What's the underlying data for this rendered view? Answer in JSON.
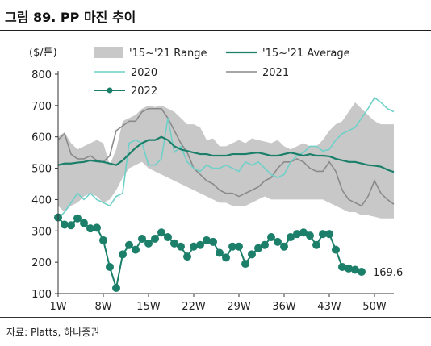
{
  "figure": {
    "title": "그림 89.  PP 마진 추이",
    "source": "자료: Platts, 하나증권"
  },
  "colors": {
    "range": "#c8c8c8",
    "avg": "#1b7f6a",
    "y2020": "#6fd0c8",
    "y2021": "#8a8a8a",
    "y2022": "#1b7f6a"
  },
  "chart_data": {
    "type": "line",
    "ylabel": "($/톤)",
    "ylim": [
      100,
      800
    ],
    "yticks": [
      100,
      200,
      300,
      400,
      500,
      600,
      700,
      800
    ],
    "xlim": [
      1,
      53
    ],
    "xticks": [
      1,
      8,
      15,
      22,
      29,
      36,
      43,
      50
    ],
    "xtick_labels": [
      "1W",
      "8W",
      "15W",
      "22W",
      "29W",
      "36W",
      "43W",
      "50W"
    ],
    "legend": {
      "range": "'15~'21 Range",
      "avg": "'15~'21 Average",
      "y2020": "2020",
      "y2021": "2021",
      "y2022": "2022"
    },
    "weeks": [
      1,
      2,
      3,
      4,
      5,
      6,
      7,
      8,
      9,
      10,
      11,
      12,
      13,
      14,
      15,
      16,
      17,
      18,
      19,
      20,
      21,
      22,
      23,
      24,
      25,
      26,
      27,
      28,
      29,
      30,
      31,
      32,
      33,
      34,
      35,
      36,
      37,
      38,
      39,
      40,
      41,
      42,
      43,
      44,
      45,
      46,
      47,
      48,
      49,
      50,
      51,
      52,
      53
    ],
    "range_high": [
      600,
      615,
      580,
      560,
      570,
      580,
      590,
      580,
      510,
      560,
      650,
      660,
      670,
      690,
      700,
      695,
      700,
      690,
      680,
      660,
      640,
      640,
      630,
      590,
      595,
      570,
      570,
      580,
      590,
      580,
      595,
      590,
      585,
      580,
      590,
      570,
      560,
      570,
      580,
      570,
      570,
      590,
      620,
      640,
      650,
      680,
      710,
      690,
      670,
      650,
      640,
      640,
      640
    ],
    "range_low": [
      380,
      360,
      380,
      390,
      410,
      420,
      410,
      390,
      400,
      430,
      470,
      500,
      510,
      520,
      500,
      490,
      480,
      470,
      460,
      450,
      440,
      430,
      420,
      410,
      400,
      390,
      390,
      380,
      380,
      380,
      390,
      400,
      410,
      400,
      400,
      400,
      400,
      400,
      400,
      400,
      400,
      400,
      390,
      380,
      370,
      360,
      360,
      350,
      350,
      345,
      340,
      340,
      340
    ],
    "avg": [
      510,
      515,
      515,
      518,
      520,
      525,
      522,
      520,
      515,
      510,
      525,
      545,
      565,
      580,
      590,
      590,
      600,
      590,
      570,
      560,
      555,
      550,
      545,
      545,
      540,
      540,
      540,
      545,
      545,
      545,
      548,
      550,
      545,
      540,
      540,
      545,
      550,
      545,
      540,
      545,
      540,
      540,
      538,
      530,
      525,
      520,
      520,
      515,
      510,
      508,
      505,
      495,
      488
    ],
    "y2020": [
      340,
      360,
      390,
      420,
      400,
      420,
      400,
      390,
      380,
      410,
      420,
      580,
      590,
      580,
      510,
      510,
      530,
      660,
      550,
      570,
      520,
      500,
      490,
      510,
      500,
      500,
      510,
      500,
      490,
      520,
      510,
      520,
      500,
      480,
      470,
      480,
      520,
      540,
      550,
      570,
      570,
      555,
      560,
      590,
      610,
      620,
      630,
      660,
      690,
      725,
      710,
      690,
      680
    ],
    "y2021": [
      590,
      610,
      545,
      530,
      530,
      540,
      525,
      520,
      540,
      620,
      635,
      650,
      650,
      680,
      690,
      690,
      690,
      660,
      620,
      580,
      550,
      500,
      480,
      460,
      450,
      430,
      420,
      420,
      410,
      420,
      430,
      440,
      460,
      470,
      500,
      520,
      520,
      530,
      520,
      500,
      490,
      490,
      520,
      490,
      430,
      400,
      390,
      380,
      410,
      460,
      420,
      400,
      385
    ],
    "y2022": [
      343,
      320,
      318,
      340,
      325,
      308,
      310,
      270,
      185,
      118,
      225,
      255,
      240,
      275,
      260,
      275,
      295,
      280,
      260,
      250,
      218,
      250,
      255,
      270,
      265,
      230,
      215,
      250,
      250,
      195,
      225,
      245,
      255,
      280,
      265,
      250,
      280,
      290,
      295,
      285,
      255,
      290,
      290,
      240,
      185,
      180,
      176,
      169.6
    ],
    "end_label": "169.6"
  }
}
